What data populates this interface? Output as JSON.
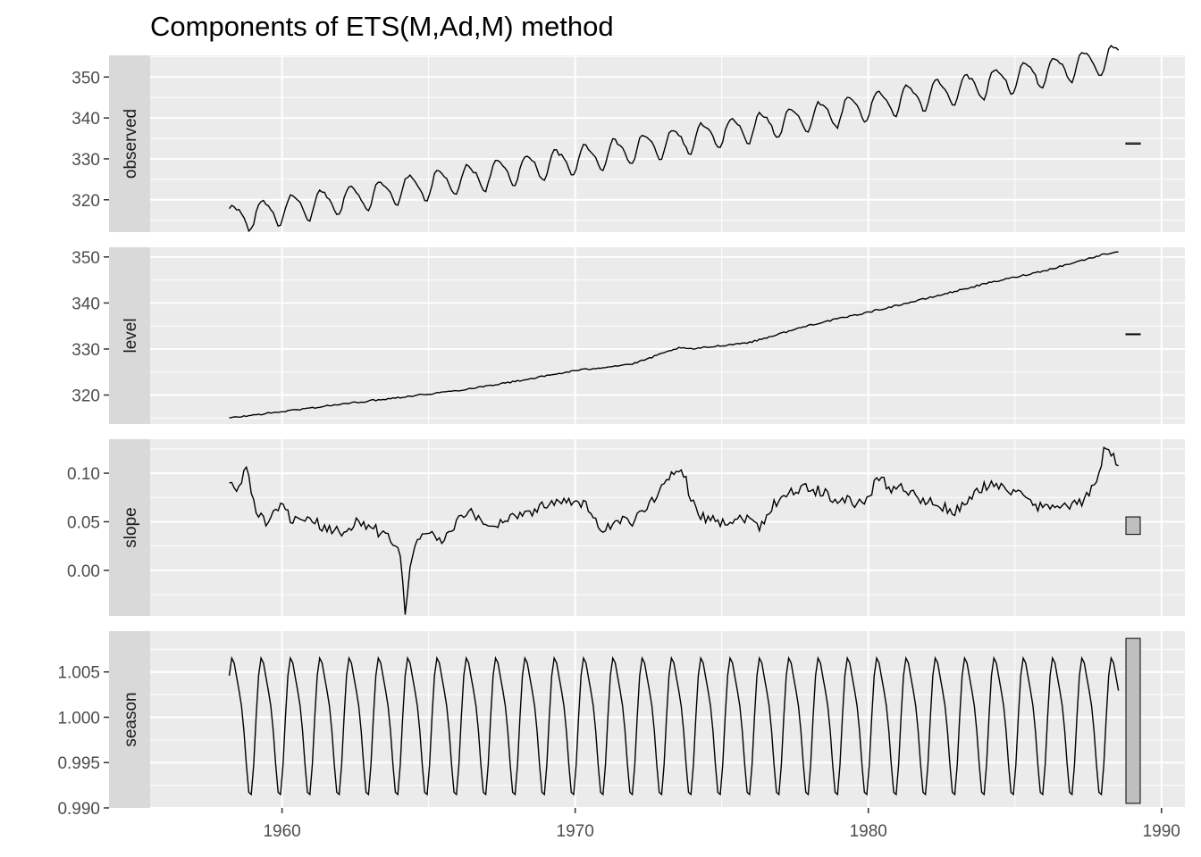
{
  "chart_data": {
    "type": "line",
    "title": "Components of ETS(M,Ad,M) method",
    "x_ticks": [
      1960,
      1970,
      1980,
      1990
    ],
    "xlim": [
      1955.5,
      1990.8
    ],
    "x_start": 1958.2,
    "x_end": 1988.5,
    "grid": true,
    "colors": {
      "panel": "#ebebeb",
      "strip": "#d9d9d9",
      "grid": "#ffffff",
      "line": "#000000",
      "axis_text": "#4d4d4d",
      "scale_box": "#bfbfbf"
    },
    "panels": [
      {
        "name": "observed",
        "ylim": [
          312.1,
          355.3
        ],
        "y_ticks": [
          "320",
          "330",
          "340",
          "350"
        ],
        "y_tick_values": [
          320,
          330,
          340,
          350
        ],
        "trend_start": 315.5,
        "trend_slope": 1.17,
        "trend_curve": 0.0042,
        "seasonal_amplitude": 3.2,
        "scale_bar": [
          333.6,
          333.9
        ]
      },
      {
        "name": "level",
        "ylim": [
          313.7,
          352.1
        ],
        "y_ticks": [
          "320",
          "330",
          "340",
          "350"
        ],
        "y_tick_values": [
          320,
          330,
          340,
          350
        ],
        "points": [
          [
            1958.2,
            315.0
          ],
          [
            1960.0,
            316.4
          ],
          [
            1962.0,
            318.0
          ],
          [
            1964.0,
            319.5
          ],
          [
            1966.0,
            321.0
          ],
          [
            1968.0,
            323.0
          ],
          [
            1970.0,
            325.3
          ],
          [
            1972.0,
            326.8
          ],
          [
            1973.5,
            330.2
          ],
          [
            1974.0,
            330.0
          ],
          [
            1976.0,
            331.5
          ],
          [
            1978.0,
            335.2
          ],
          [
            1980.0,
            338.0
          ],
          [
            1982.0,
            341.0
          ],
          [
            1984.0,
            344.2
          ],
          [
            1986.0,
            347.0
          ],
          [
            1988.0,
            350.5
          ],
          [
            1988.5,
            351.2
          ]
        ],
        "scale_bar": [
          333.1,
          333.3
        ]
      },
      {
        "name": "slope",
        "ylim": [
          -0.047,
          0.135
        ],
        "y_ticks": [
          "0.00",
          "0.05",
          "0.10"
        ],
        "y_tick_values": [
          0.0,
          0.05,
          0.1
        ],
        "points": [
          [
            1958.2,
            0.089
          ],
          [
            1958.5,
            0.082
          ],
          [
            1958.8,
            0.108
          ],
          [
            1959.1,
            0.06
          ],
          [
            1959.5,
            0.049
          ],
          [
            1960.0,
            0.065
          ],
          [
            1960.3,
            0.054
          ],
          [
            1960.7,
            0.046
          ],
          [
            1961.0,
            0.052
          ],
          [
            1961.5,
            0.042
          ],
          [
            1962.0,
            0.039
          ],
          [
            1962.5,
            0.05
          ],
          [
            1963.0,
            0.045
          ],
          [
            1963.5,
            0.036
          ],
          [
            1964.0,
            0.027
          ],
          [
            1964.2,
            -0.04
          ],
          [
            1964.5,
            0.03
          ],
          [
            1965.0,
            0.038
          ],
          [
            1965.5,
            0.03
          ],
          [
            1966.0,
            0.05
          ],
          [
            1966.5,
            0.06
          ],
          [
            1967.0,
            0.045
          ],
          [
            1967.5,
            0.05
          ],
          [
            1968.0,
            0.058
          ],
          [
            1968.5,
            0.06
          ],
          [
            1969.0,
            0.068
          ],
          [
            1969.5,
            0.074
          ],
          [
            1970.0,
            0.07
          ],
          [
            1970.5,
            0.065
          ],
          [
            1970.9,
            0.035
          ],
          [
            1971.2,
            0.045
          ],
          [
            1971.6,
            0.05
          ],
          [
            1972.0,
            0.05
          ],
          [
            1972.5,
            0.07
          ],
          [
            1973.0,
            0.085
          ],
          [
            1973.6,
            0.11
          ],
          [
            1973.9,
            0.08
          ],
          [
            1974.3,
            0.055
          ],
          [
            1974.8,
            0.052
          ],
          [
            1975.2,
            0.05
          ],
          [
            1975.8,
            0.055
          ],
          [
            1976.3,
            0.045
          ],
          [
            1976.8,
            0.07
          ],
          [
            1977.3,
            0.08
          ],
          [
            1977.8,
            0.085
          ],
          [
            1978.3,
            0.082
          ],
          [
            1978.8,
            0.075
          ],
          [
            1979.5,
            0.07
          ],
          [
            1980.0,
            0.07
          ],
          [
            1980.3,
            0.1
          ],
          [
            1980.7,
            0.085
          ],
          [
            1981.3,
            0.085
          ],
          [
            1981.8,
            0.07
          ],
          [
            1982.3,
            0.07
          ],
          [
            1982.8,
            0.06
          ],
          [
            1983.3,
            0.065
          ],
          [
            1983.8,
            0.085
          ],
          [
            1984.3,
            0.09
          ],
          [
            1984.8,
            0.082
          ],
          [
            1985.3,
            0.075
          ],
          [
            1985.8,
            0.065
          ],
          [
            1986.3,
            0.07
          ],
          [
            1986.8,
            0.065
          ],
          [
            1987.3,
            0.07
          ],
          [
            1987.8,
            0.09
          ],
          [
            1988.1,
            0.13
          ],
          [
            1988.5,
            0.11
          ]
        ],
        "scale_bar": [
          0.037,
          0.055
        ]
      },
      {
        "name": "season",
        "ylim": [
          0.99,
          1.0095
        ],
        "y_ticks": [
          "0.990",
          "0.995",
          "1.000",
          "1.005"
        ],
        "y_tick_values": [
          0.99,
          0.995,
          1.0,
          1.005
        ],
        "seasonal_min": 0.9908,
        "seasonal_max": 1.0087,
        "scale_bar": [
          0.9905,
          1.0087
        ]
      }
    ]
  }
}
